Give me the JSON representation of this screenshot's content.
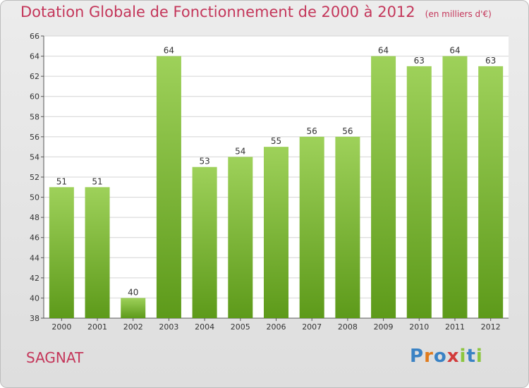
{
  "header": {
    "title": "Dotation Globale de Fonctionnement de 2000 à 2012",
    "unit_note": "(en milliers d'€)"
  },
  "commune": "SAGNAT",
  "logo": {
    "text": "Proxiti",
    "letter_colors": [
      "#3a82c4",
      "#e07b1c",
      "#3a82c4",
      "#d23b3b",
      "#8cc63f",
      "#3a82c4",
      "#8cc63f"
    ]
  },
  "chart_data": {
    "type": "bar",
    "categories": [
      "2000",
      "2001",
      "2002",
      "2003",
      "2004",
      "2005",
      "2006",
      "2007",
      "2008",
      "2009",
      "2010",
      "2011",
      "2012"
    ],
    "values": [
      51,
      51,
      40,
      64,
      53,
      54,
      55,
      56,
      56,
      64,
      63,
      64,
      63
    ],
    "ylim": [
      38,
      66
    ],
    "yticks": [
      38,
      40,
      42,
      44,
      46,
      48,
      50,
      52,
      54,
      56,
      58,
      60,
      62,
      64,
      66
    ],
    "grid": true,
    "bar_color_top": "#9ed15a",
    "bar_color_bottom": "#5d9a1a"
  }
}
